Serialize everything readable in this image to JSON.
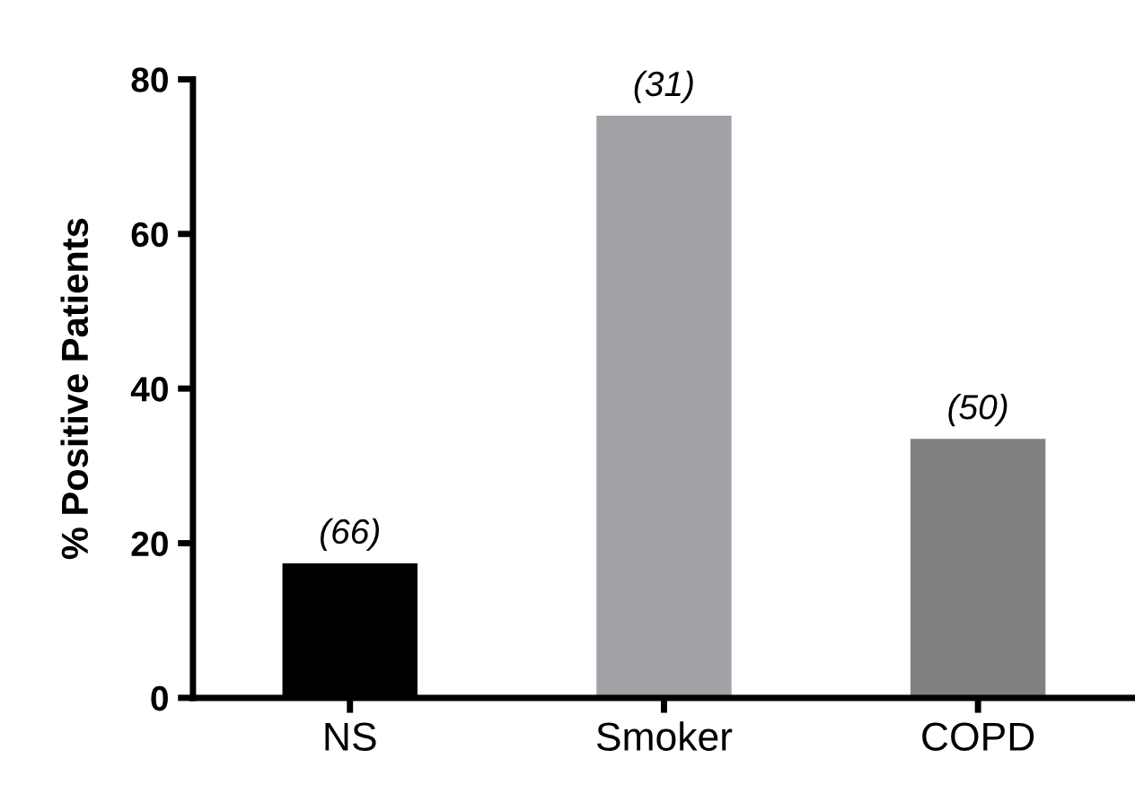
{
  "chart_data": {
    "type": "bar",
    "ylabel": "% Positive Patients",
    "categories": [
      "NS",
      "Smoker",
      "COPD"
    ],
    "values": [
      17.4,
      75.3,
      33.5
    ],
    "colors": [
      "#000000",
      "#a2a1a6",
      "#808080"
    ],
    "annotations": [
      {
        "text": "(66)",
        "x": "NS",
        "y": 17.4
      },
      {
        "text": "(31)",
        "x": "Smoker",
        "y": 75.3
      },
      {
        "text": "(50)",
        "x": "COPD",
        "y": 33.5
      }
    ],
    "ylim": [
      0,
      80
    ],
    "yticks": [
      0,
      20,
      40,
      60,
      80
    ],
    "grid": false,
    "legend": false
  }
}
